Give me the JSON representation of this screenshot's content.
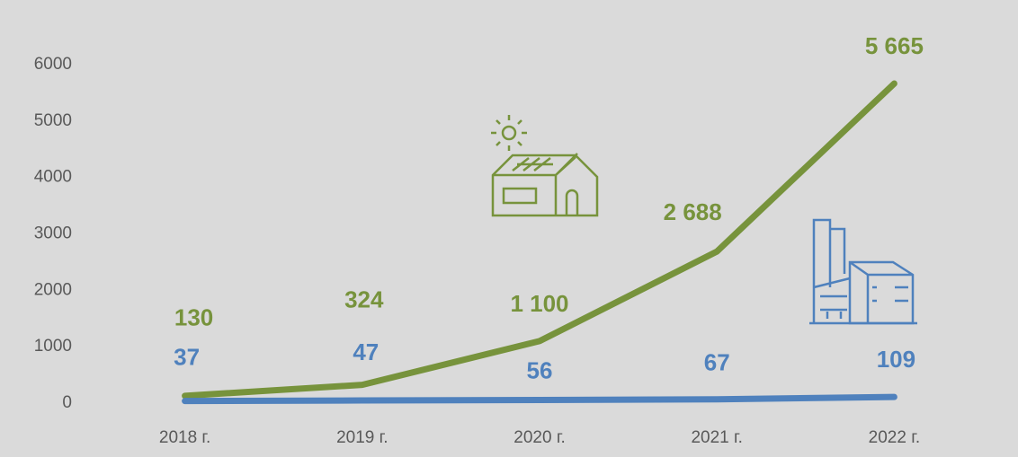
{
  "chart_data": {
    "type": "line",
    "categories": [
      "2018 г.",
      "2019 г.",
      "2020 г.",
      "2021 г.",
      "2022 г."
    ],
    "series": [
      {
        "color": "#77933c",
        "values": [
          130,
          324,
          1100,
          2688,
          5665
        ],
        "value_labels": [
          "130",
          "324",
          "1 100",
          "2 688",
          "5 665"
        ]
      },
      {
        "color": "#4f81bd",
        "values": [
          37,
          47,
          56,
          67,
          109
        ],
        "value_labels": [
          "37",
          "47",
          "56",
          "67",
          "109"
        ]
      }
    ],
    "ylim": [
      0,
      6000
    ],
    "yticks": [
      0,
      1000,
      2000,
      3000,
      4000,
      5000,
      6000
    ],
    "grid": false
  }
}
